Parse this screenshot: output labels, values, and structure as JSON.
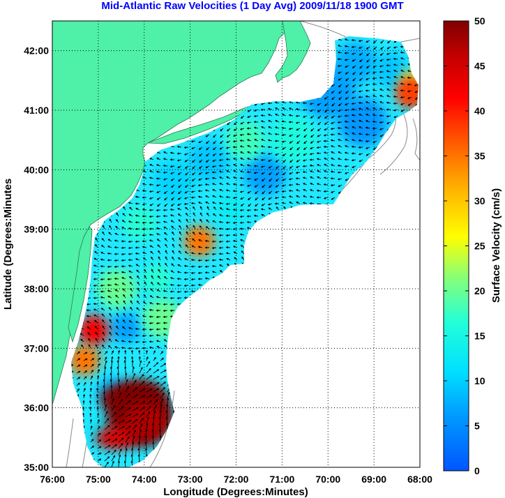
{
  "title": "Mid-Atlantic Raw Velocities (1 Day Avg) 2009/11/18 1900 GMT",
  "colors": {
    "land": "#4ff0a8",
    "background": "#ffffff",
    "title": "#0000ff",
    "grid": "#000000",
    "arrows": "#000000",
    "bathymetry": "#888888"
  },
  "chart_data": {
    "type": "heatmap",
    "xlabel": "Longitude (Degrees:Minutes)",
    "ylabel": "Latitude (Degrees:Minutes",
    "x_ticks": [
      "76:00",
      "75:00",
      "74:00",
      "73:00",
      "72:00",
      "71:00",
      "70:00",
      "69:00",
      "68:00"
    ],
    "y_ticks": [
      "35:00",
      "36:00",
      "37:00",
      "38:00",
      "39:00",
      "40:00",
      "41:00",
      "42:00"
    ],
    "xlim": [
      -76,
      -68
    ],
    "ylim": [
      35,
      42.5
    ],
    "grid": true,
    "grid_style": "dotted",
    "colorbar": {
      "label": "Surface Velocity (cm/s)",
      "min": 0,
      "max": 50,
      "ticks": [
        "0",
        "5",
        "10",
        "15",
        "20",
        "25",
        "30",
        "35",
        "40",
        "45",
        "50"
      ],
      "colormap": "jet"
    },
    "hotspots": [
      {
        "lon": -74.1,
        "lat": 35.9,
        "value": 50
      },
      {
        "lon": -72.8,
        "lat": 38.8,
        "value": 35
      },
      {
        "lon": -75.1,
        "lat": 37.3,
        "value": 42
      },
      {
        "lon": -75.3,
        "lat": 36.8,
        "value": 35
      },
      {
        "lon": -68.2,
        "lat": 41.3,
        "value": 38
      },
      {
        "lon": -71.8,
        "lat": 40.5,
        "value": 18
      },
      {
        "lon": -74.6,
        "lat": 38.0,
        "value": 20
      },
      {
        "lon": -73.6,
        "lat": 37.5,
        "value": 20
      }
    ]
  }
}
